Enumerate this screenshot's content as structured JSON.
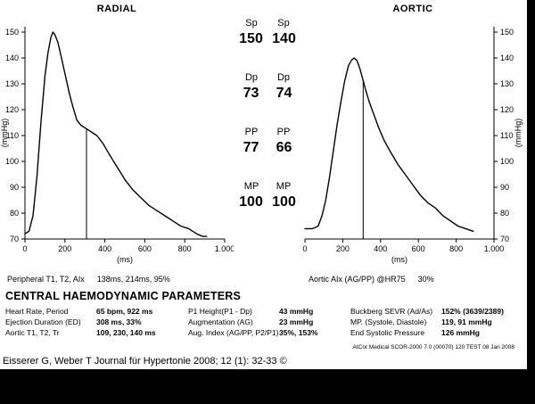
{
  "values_panel": {
    "rows": [
      {
        "label_left": "Sp",
        "label_right": "Sp",
        "value_left": "150",
        "value_right": "140"
      },
      {
        "label_left": "Dp",
        "label_right": "Dp",
        "value_left": "73",
        "value_right": "74"
      },
      {
        "label_left": "PP",
        "label_right": "PP",
        "value_left": "77",
        "value_right": "66"
      },
      {
        "label_left": "MP",
        "label_right": "MP",
        "value_left": "100",
        "value_right": "100"
      }
    ]
  },
  "captions": {
    "radial_label": "Peripheral T1, T2, AIx",
    "radial_value": "138ms, 214ms, 95%",
    "aortic_label": "Aortic AIx  (AG/PP) @HR75",
    "aortic_value": "30%"
  },
  "params": {
    "title": "CENTRAL HAEMODYNAMIC PARAMETERS",
    "col1": [
      {
        "label": "Heart Rate, Period",
        "value": "65 bpm, 922 ms"
      },
      {
        "label": "Ejection Duration (ED)",
        "value": "308 ms, 33%"
      },
      {
        "label": "Aortic T1, T2, Tr",
        "value": "109, 230, 140 ms"
      }
    ],
    "col2": [
      {
        "label": "P1 Height(P1 - Dp)",
        "value": "43 mmHg"
      },
      {
        "label": "Augmentation (AG)",
        "value": "23 mmHg"
      },
      {
        "label": "Aug. Index (AG/PP, P2/P1)",
        "value": "35%, 153%"
      }
    ],
    "col3": [
      {
        "label": "Buckberg SEVR (Ad/As)",
        "value": "152% (3639/2389)"
      },
      {
        "label": "MP. (Systole, Diastole)",
        "value": "119, 91 mmHg"
      },
      {
        "label": "End Systolic Pressure",
        "value": "126 mmHg"
      }
    ]
  },
  "device_footer": "AtCor Medical SCOR-2000 7.0 (00070) 120 TEST  08 Jan 2008",
  "citation": "Eisserer G, Weber T Journal für Hypertonie 2008; 12 (1): 32-33 ©",
  "chart_data": [
    {
      "type": "line",
      "title": "RADIAL",
      "xlabel": "(ms)",
      "ylabel": "(mmHg)",
      "xlim": [
        0,
        1000
      ],
      "ylim": [
        70,
        150
      ],
      "xticks": [
        0,
        200,
        400,
        600,
        800,
        1000
      ],
      "xtick_labels": [
        "0",
        "200",
        "400",
        "600",
        "800",
        "1.000"
      ],
      "yticks": [
        70,
        80,
        90,
        100,
        110,
        120,
        130,
        140,
        150
      ],
      "grid": false,
      "legend": false,
      "yaxis_side": "left",
      "marker_x": 308,
      "x": [
        0,
        20,
        40,
        60,
        80,
        100,
        115,
        130,
        140,
        150,
        165,
        180,
        200,
        220,
        240,
        260,
        280,
        300,
        320,
        340,
        360,
        390,
        420,
        460,
        500,
        540,
        580,
        620,
        660,
        700,
        740,
        780,
        820,
        860,
        890,
        910
      ],
      "y": [
        72,
        73,
        79,
        94,
        115,
        133,
        142,
        148,
        150,
        149,
        146,
        141,
        134,
        127,
        121,
        116,
        114,
        113,
        112,
        111,
        110,
        107,
        103,
        98,
        93,
        89,
        86,
        83,
        81,
        79,
        77,
        75,
        74,
        72,
        71,
        71
      ]
    },
    {
      "type": "line",
      "title": "AORTIC",
      "xlabel": "(ms)",
      "ylabel": "(mmHg)",
      "xlim": [
        0,
        1000
      ],
      "ylim": [
        70,
        150
      ],
      "xticks": [
        0,
        200,
        400,
        600,
        800,
        1000
      ],
      "xtick_labels": [
        "0",
        "200",
        "400",
        "600",
        "800",
        "1.000"
      ],
      "yticks": [
        70,
        80,
        90,
        100,
        110,
        120,
        130,
        140,
        150
      ],
      "grid": false,
      "legend": false,
      "yaxis_side": "right",
      "marker_x": 308,
      "x": [
        0,
        40,
        70,
        90,
        110,
        130,
        150,
        170,
        190,
        210,
        230,
        245,
        260,
        275,
        290,
        305,
        320,
        340,
        365,
        390,
        420,
        450,
        490,
        530,
        570,
        610,
        650,
        690,
        730,
        770,
        810,
        850,
        890
      ],
      "y": [
        74,
        74,
        75,
        79,
        85,
        94,
        104,
        114,
        123,
        131,
        137,
        139,
        140,
        139,
        136,
        132,
        128,
        123,
        118,
        113,
        108,
        104,
        99,
        95,
        91,
        87,
        84,
        82,
        79,
        77,
        75,
        74,
        73
      ]
    }
  ]
}
